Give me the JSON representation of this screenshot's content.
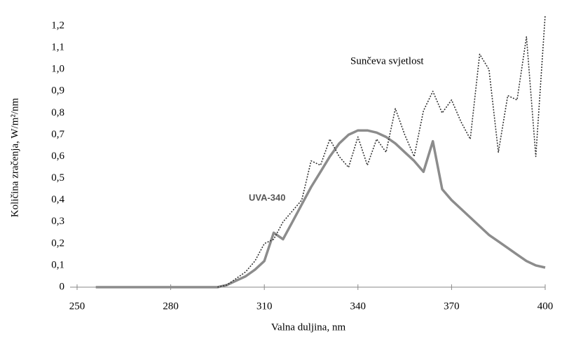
{
  "chart_data": {
    "type": "line",
    "xlabel": "Valna duljina, nm",
    "ylabel": "Količina zračenja, W/m²/nm",
    "x": [
      256,
      259,
      262,
      265,
      268,
      271,
      274,
      277,
      280,
      283,
      286,
      289,
      292,
      295,
      298,
      301,
      304,
      307,
      310,
      313,
      316,
      319,
      322,
      325,
      328,
      331,
      334,
      337,
      340,
      343,
      346,
      349,
      352,
      355,
      358,
      361,
      364,
      367,
      370,
      373,
      376,
      379,
      382,
      385,
      388,
      391,
      394,
      397,
      400
    ],
    "series": [
      {
        "name": "UVA-340",
        "color": "#8c8c8c",
        "style": "solid",
        "values": [
          0,
          0,
          0,
          0,
          0,
          0,
          0,
          0,
          0,
          0,
          0,
          0,
          0,
          0,
          0.01,
          0.03,
          0.05,
          0.08,
          0.12,
          0.25,
          0.22,
          0.3,
          0.38,
          0.46,
          0.53,
          0.6,
          0.66,
          0.7,
          0.72,
          0.72,
          0.71,
          0.69,
          0.66,
          0.62,
          0.58,
          0.53,
          0.67,
          0.45,
          0.4,
          0.36,
          0.32,
          0.28,
          0.24,
          0.21,
          0.18,
          0.15,
          0.12,
          0.1,
          0.09
        ]
      },
      {
        "name": "Sunčeva svjetlost",
        "color": "#333333",
        "style": "dotted",
        "values": [
          null,
          null,
          null,
          null,
          null,
          null,
          null,
          null,
          null,
          null,
          null,
          null,
          null,
          0,
          0.01,
          0.04,
          0.07,
          0.12,
          0.2,
          0.22,
          0.3,
          0.35,
          0.4,
          0.58,
          0.56,
          0.68,
          0.6,
          0.55,
          0.69,
          0.56,
          0.68,
          0.62,
          0.82,
          0.7,
          0.6,
          0.81,
          0.9,
          0.8,
          0.86,
          0.76,
          0.68,
          1.07,
          1.0,
          0.62,
          0.88,
          0.86,
          1.15,
          0.6,
          1.25
        ]
      }
    ],
    "xlim": [
      250,
      400
    ],
    "xticks": [
      250,
      280,
      310,
      340,
      370,
      400
    ],
    "ylim": [
      0,
      1.2
    ],
    "yticks": [
      0,
      {
        "value": 0.1,
        "label": "0,1"
      },
      {
        "value": 0.2,
        "label": "0,2"
      },
      {
        "value": 0.3,
        "label": "0,3"
      },
      {
        "value": 0.4,
        "label": "0,4"
      },
      {
        "value": 0.5,
        "label": "0,5"
      },
      {
        "value": 0.6,
        "label": "0,6"
      },
      {
        "value": 0.7,
        "label": "0,7"
      },
      {
        "value": 0.8,
        "label": "0,8"
      },
      {
        "value": 0.9,
        "label": "0,9"
      },
      {
        "value": 1.0,
        "label": "1,0"
      },
      {
        "value": 1.1,
        "label": "1,1"
      },
      {
        "value": 1.2,
        "label": "1,2"
      }
    ]
  }
}
